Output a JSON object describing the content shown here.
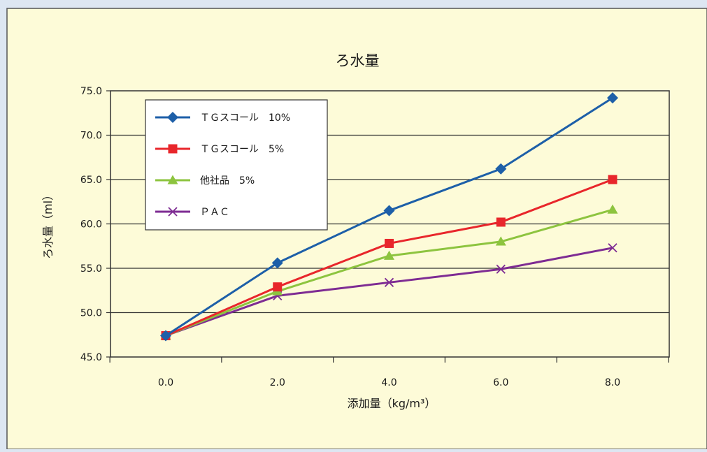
{
  "chart_data": {
    "type": "line",
    "title": "ろ水量",
    "xlabel": "添加量（kg/m³）",
    "ylabel": "ろ水量（ml）",
    "categories": [
      "0.0",
      "2.0",
      "4.0",
      "6.0",
      "8.0"
    ],
    "x": [
      0.0,
      2.0,
      4.0,
      6.0,
      8.0
    ],
    "y_ticks": [
      "45.0",
      "50.0",
      "55.0",
      "60.0",
      "65.0",
      "70.0",
      "75.0"
    ],
    "ylim": [
      45.0,
      75.0
    ],
    "grid": true,
    "legend_position": "top-left",
    "series": [
      {
        "name": "ＴＧスコール　10%",
        "color": "#1d5fa8",
        "marker": "diamond",
        "values": [
          47.4,
          55.6,
          61.5,
          66.2,
          74.2
        ]
      },
      {
        "name": "ＴＧスコール　5%",
        "color": "#e8262b",
        "marker": "square",
        "values": [
          47.4,
          52.9,
          57.8,
          60.2,
          65.0
        ]
      },
      {
        "name": "他社品　5%",
        "color": "#8dc43f",
        "marker": "triangle",
        "values": [
          47.4,
          52.4,
          56.4,
          58.0,
          61.6
        ]
      },
      {
        "name": "ＰＡＣ",
        "color": "#7e2c93",
        "marker": "x",
        "values": [
          47.4,
          51.9,
          53.4,
          54.9,
          57.3
        ]
      }
    ]
  }
}
